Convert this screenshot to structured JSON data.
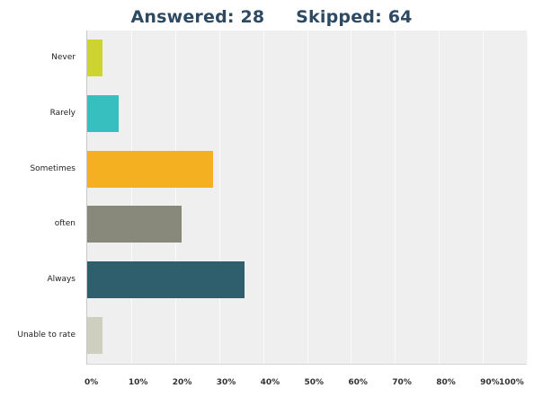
{
  "header": {
    "answered_label": "Answered: 28",
    "skipped_label": "Skipped: 64"
  },
  "chart_data": {
    "type": "bar",
    "orientation": "horizontal",
    "title": "Answered: 28    Skipped: 64",
    "categories": [
      "Never",
      "Rarely",
      "Sometimes",
      "often",
      "Always",
      "Unable to rate"
    ],
    "values": [
      3.57,
      7.14,
      28.57,
      21.43,
      35.71,
      3.57
    ],
    "colors": [
      "#cdd430",
      "#36bfbe",
      "#f5b021",
      "#88897a",
      "#2f5f6c",
      "#cfcfc0"
    ],
    "xlabel": "",
    "ylabel": "",
    "xlim": [
      0,
      100
    ],
    "x_ticks": [
      "0%",
      "10%",
      "20%",
      "30%",
      "40%",
      "50%",
      "60%",
      "70%",
      "80%",
      "90%",
      "100%"
    ],
    "grid": true,
    "legend": "none"
  }
}
